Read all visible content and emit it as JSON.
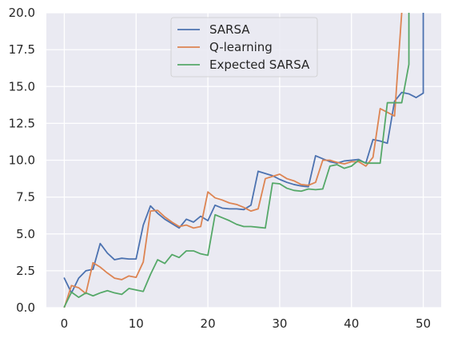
{
  "chart_data": {
    "type": "line",
    "title": "",
    "xlabel": "",
    "ylabel": "",
    "xlim": [
      -2.5,
      52.5
    ],
    "ylim": [
      0,
      20
    ],
    "xticks": [
      0,
      10,
      20,
      30,
      40,
      50
    ],
    "yticks": [
      0.0,
      2.5,
      5.0,
      7.5,
      10.0,
      12.5,
      15.0,
      17.5,
      20.0
    ],
    "xtick_labels": [
      "0",
      "10",
      "20",
      "30",
      "40",
      "50"
    ],
    "ytick_labels": [
      "0.0",
      "2.5",
      "5.0",
      "7.5",
      "10.0",
      "12.5",
      "15.0",
      "17.5",
      "20.0"
    ],
    "grid": true,
    "background": "#eaeaf2",
    "grid_color": "#ffffff",
    "legend_position": "top-center",
    "series": [
      {
        "name": "SARSA",
        "color": "#4c72b0",
        "x": [
          0,
          1,
          2,
          3,
          4,
          5,
          6,
          7,
          8,
          9,
          10,
          11,
          12,
          13,
          14,
          15,
          16,
          17,
          18,
          19,
          20,
          21,
          22,
          23,
          24,
          25,
          26,
          27,
          28,
          29,
          30,
          31,
          32,
          33,
          34,
          35,
          36,
          37,
          38,
          39,
          40,
          41,
          42,
          43,
          44,
          45,
          46,
          47,
          48,
          49,
          50,
          50
        ],
        "y": [
          2.0,
          1.0,
          2.0,
          2.5,
          2.6,
          4.35,
          3.7,
          3.25,
          3.35,
          3.3,
          3.3,
          5.6,
          6.9,
          6.4,
          6.0,
          5.7,
          5.4,
          6.0,
          5.8,
          6.2,
          5.9,
          6.95,
          6.75,
          6.7,
          6.7,
          6.65,
          6.95,
          9.25,
          9.1,
          8.95,
          8.7,
          8.5,
          8.35,
          8.25,
          8.2,
          10.3,
          10.1,
          9.9,
          9.8,
          9.95,
          10.0,
          10.05,
          9.8,
          11.4,
          11.3,
          11.15,
          14.0,
          14.6,
          14.5,
          14.25,
          14.55,
          22
        ]
      },
      {
        "name": "Q-learning",
        "color": "#dd8452",
        "x": [
          0,
          1,
          2,
          3,
          4,
          5,
          6,
          7,
          8,
          9,
          10,
          11,
          12,
          13,
          14,
          15,
          16,
          17,
          18,
          19,
          20,
          21,
          22,
          23,
          24,
          25,
          26,
          27,
          28,
          29,
          30,
          31,
          32,
          33,
          34,
          35,
          36,
          37,
          38,
          39,
          40,
          41,
          42,
          43,
          44,
          45,
          46,
          47,
          47
        ],
        "y": [
          0.0,
          1.5,
          1.35,
          0.95,
          3.05,
          2.75,
          2.35,
          2.0,
          1.9,
          2.15,
          2.05,
          3.1,
          6.55,
          6.6,
          6.15,
          5.8,
          5.5,
          5.6,
          5.4,
          5.5,
          7.85,
          7.45,
          7.3,
          7.1,
          7.0,
          6.8,
          6.55,
          6.7,
          8.75,
          8.9,
          9.05,
          8.75,
          8.6,
          8.35,
          8.3,
          8.5,
          10.0,
          10.0,
          9.85,
          9.75,
          9.9,
          9.9,
          9.6,
          10.2,
          13.5,
          13.25,
          13.0,
          20.0,
          22
        ]
      },
      {
        "name": "Expected SARSA",
        "color": "#55a868",
        "x": [
          0,
          1,
          2,
          3,
          4,
          5,
          6,
          7,
          8,
          9,
          10,
          11,
          12,
          13,
          14,
          15,
          16,
          17,
          18,
          19,
          20,
          21,
          22,
          23,
          24,
          25,
          26,
          27,
          28,
          29,
          30,
          31,
          32,
          33,
          34,
          35,
          36,
          37,
          38,
          39,
          40,
          41,
          42,
          43,
          44,
          45,
          46,
          47,
          48,
          48
        ],
        "y": [
          0.05,
          1.05,
          0.7,
          1.0,
          0.8,
          1.0,
          1.15,
          1.0,
          0.9,
          1.3,
          1.2,
          1.1,
          2.25,
          3.25,
          3.0,
          3.6,
          3.4,
          3.85,
          3.85,
          3.65,
          3.55,
          6.3,
          6.1,
          5.9,
          5.65,
          5.5,
          5.5,
          5.45,
          5.4,
          8.45,
          8.4,
          8.1,
          7.95,
          7.9,
          8.05,
          8.0,
          8.05,
          9.6,
          9.7,
          9.45,
          9.6,
          10.0,
          9.8,
          9.8,
          9.8,
          13.9,
          13.9,
          13.9,
          16.5,
          22
        ]
      }
    ]
  }
}
